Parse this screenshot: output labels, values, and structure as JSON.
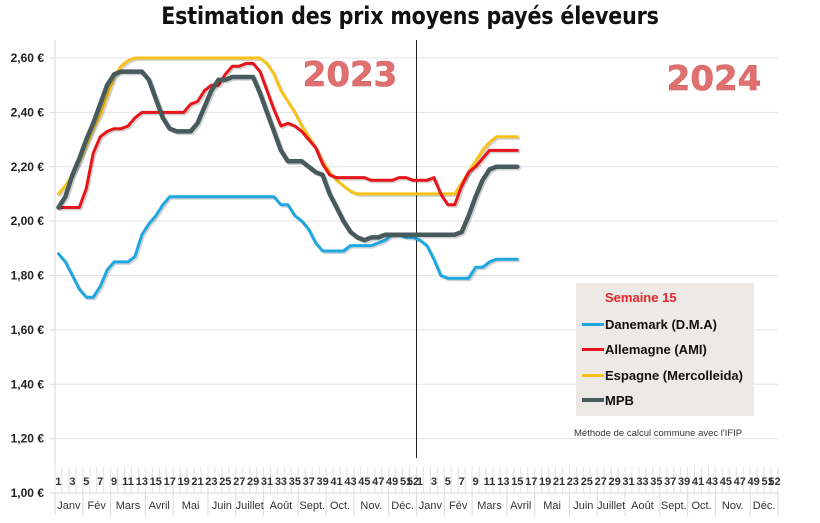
{
  "chart_data": {
    "type": "line",
    "title": "Estimation des prix moyens payés éleveurs",
    "xlabel": "",
    "ylabel": "",
    "ylim": [
      1.0,
      2.6
    ],
    "yticks": [
      "1,00 €",
      "1,20 €",
      "1,40 €",
      "1,60 €",
      "1,80 €",
      "2,00 €",
      "2,20 €",
      "2,40 €",
      "2,60 €"
    ],
    "ytick_values": [
      1.0,
      1.2,
      1.4,
      1.6,
      1.8,
      2.0,
      2.2,
      2.4,
      2.6
    ],
    "grid": true,
    "years": [
      "2023",
      "2024"
    ],
    "weeks_per_year": 52,
    "week_tick_labels_2023": [
      "1",
      "3",
      "5",
      "7",
      "9",
      "11",
      "13",
      "15",
      "17",
      "19",
      "21",
      "23",
      "25",
      "27",
      "29",
      "31",
      "33",
      "35",
      "37",
      "39",
      "41",
      "43",
      "45",
      "47",
      "49",
      "51"
    ],
    "week_tick_labels_2024": [
      "1",
      "3",
      "5",
      "7",
      "9",
      "11",
      "13",
      "15",
      "17",
      "19",
      "21",
      "23",
      "25",
      "27",
      "29",
      "31",
      "33",
      "35",
      "37",
      "39",
      "41",
      "43",
      "45",
      "47",
      "49",
      "51"
    ],
    "last_week_label": "52",
    "months": [
      {
        "label": "Janv",
        "weeks": [
          1,
          4
        ]
      },
      {
        "label": "Fév",
        "weeks": [
          5,
          8
        ]
      },
      {
        "label": "Mars",
        "weeks": [
          9,
          13
        ]
      },
      {
        "label": "Avril",
        "weeks": [
          14,
          17
        ]
      },
      {
        "label": "Mai",
        "weeks": [
          18,
          22
        ]
      },
      {
        "label": "Juin",
        "weeks": [
          23,
          26
        ]
      },
      {
        "label": "Juillet",
        "weeks": [
          27,
          30
        ]
      },
      {
        "label": "Août",
        "weeks": [
          31,
          35
        ]
      },
      {
        "label": "Sept.",
        "weeks": [
          36,
          39
        ]
      },
      {
        "label": "Oct.",
        "weeks": [
          40,
          43
        ]
      },
      {
        "label": "Nov.",
        "weeks": [
          44,
          48
        ]
      },
      {
        "label": "Déc.",
        "weeks": [
          49,
          52
        ]
      }
    ],
    "legend_title": "Semaine 15",
    "legend_position": "bottom-right",
    "note": "Méthode de calcul commune avec l'IFIP",
    "series": [
      {
        "name": "Danemark (D.M.A)",
        "color": "#1ea7e1",
        "values_2023": [
          1.88,
          1.85,
          1.8,
          1.75,
          1.72,
          1.72,
          1.76,
          1.82,
          1.85,
          1.85,
          1.85,
          1.87,
          1.95,
          1.99,
          2.02,
          2.06,
          2.09,
          2.09,
          2.09,
          2.09,
          2.09,
          2.09,
          2.09,
          2.09,
          2.09,
          2.09,
          2.09,
          2.09,
          2.09,
          2.09,
          2.09,
          2.09,
          2.06,
          2.06,
          2.02,
          2.0,
          1.97,
          1.92,
          1.89,
          1.89,
          1.89,
          1.89,
          1.91,
          1.91,
          1.91,
          1.91,
          1.92,
          1.93,
          1.95,
          1.95,
          1.94,
          1.94
        ],
        "values_2024": [
          1.93,
          1.91,
          1.86,
          1.8,
          1.79,
          1.79,
          1.79,
          1.79,
          1.83,
          1.83,
          1.85,
          1.86,
          1.86,
          1.86,
          1.86
        ]
      },
      {
        "name": "Allemagne (AMI)",
        "color": "#e8141b",
        "values_2023": [
          2.05,
          2.05,
          2.05,
          2.05,
          2.12,
          2.25,
          2.31,
          2.33,
          2.34,
          2.34,
          2.35,
          2.38,
          2.4,
          2.4,
          2.4,
          2.4,
          2.4,
          2.4,
          2.4,
          2.43,
          2.44,
          2.48,
          2.5,
          2.5,
          2.54,
          2.57,
          2.57,
          2.58,
          2.58,
          2.55,
          2.48,
          2.41,
          2.35,
          2.36,
          2.35,
          2.33,
          2.3,
          2.27,
          2.21,
          2.17,
          2.16,
          2.16,
          2.16,
          2.16,
          2.16,
          2.15,
          2.15,
          2.15,
          2.15,
          2.16,
          2.16,
          2.15
        ],
        "values_2024": [
          2.15,
          2.15,
          2.16,
          2.1,
          2.06,
          2.06,
          2.13,
          2.18,
          2.2,
          2.23,
          2.26,
          2.26,
          2.26,
          2.26,
          2.26
        ]
      },
      {
        "name": "Espagne (Mercolleida)",
        "color": "#f8c21b",
        "values_2023": [
          2.1,
          2.13,
          2.17,
          2.22,
          2.28,
          2.34,
          2.39,
          2.46,
          2.53,
          2.57,
          2.59,
          2.6,
          2.6,
          2.6,
          2.6,
          2.6,
          2.6,
          2.6,
          2.6,
          2.6,
          2.6,
          2.6,
          2.6,
          2.6,
          2.6,
          2.6,
          2.6,
          2.6,
          2.6,
          2.6,
          2.58,
          2.54,
          2.48,
          2.44,
          2.4,
          2.35,
          2.31,
          2.27,
          2.22,
          2.18,
          2.15,
          2.13,
          2.11,
          2.1,
          2.1,
          2.1,
          2.1,
          2.1,
          2.1,
          2.1,
          2.1,
          2.1
        ],
        "values_2024": [
          2.1,
          2.1,
          2.1,
          2.1,
          2.1,
          2.1,
          2.14,
          2.18,
          2.22,
          2.26,
          2.29,
          2.31,
          2.31,
          2.31,
          2.31
        ]
      },
      {
        "name": "MPB",
        "color": "#475a5c",
        "values_2023": [
          2.05,
          2.09,
          2.17,
          2.23,
          2.3,
          2.36,
          2.43,
          2.5,
          2.54,
          2.55,
          2.55,
          2.55,
          2.55,
          2.52,
          2.45,
          2.38,
          2.34,
          2.33,
          2.33,
          2.33,
          2.36,
          2.42,
          2.48,
          2.52,
          2.52,
          2.53,
          2.53,
          2.53,
          2.53,
          2.47,
          2.4,
          2.33,
          2.26,
          2.22,
          2.22,
          2.22,
          2.2,
          2.18,
          2.17,
          2.1,
          2.05,
          2.0,
          1.96,
          1.94,
          1.93,
          1.94,
          1.94,
          1.95,
          1.95,
          1.95,
          1.95,
          1.95
        ],
        "values_2024": [
          1.95,
          1.95,
          1.95,
          1.95,
          1.95,
          1.95,
          1.96,
          2.02,
          2.09,
          2.15,
          2.19,
          2.2,
          2.2,
          2.2,
          2.2
        ]
      }
    ]
  }
}
